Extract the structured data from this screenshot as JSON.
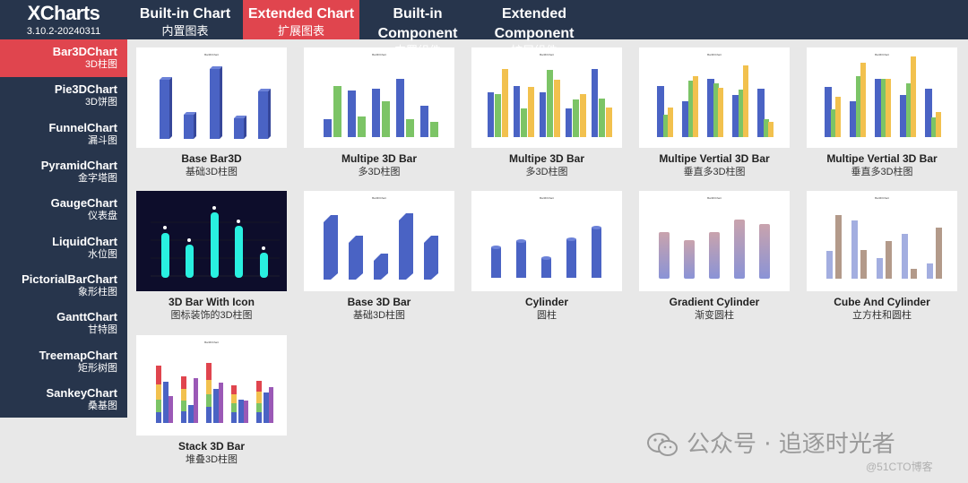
{
  "app": {
    "name": "XCharts",
    "version": "3.10.2-20240311"
  },
  "tabs": [
    {
      "en": "Built-in Chart",
      "zh": "内置图表"
    },
    {
      "en": "Extended Chart",
      "zh": "扩展图表"
    },
    {
      "en": "Built-in Component",
      "zh": "内置组件"
    },
    {
      "en": "Extended Component",
      "zh": "扩展组件"
    }
  ],
  "sidebar": [
    {
      "en": "Bar3DChart",
      "zh": "3D柱图"
    },
    {
      "en": "Pie3DChart",
      "zh": "3D饼图"
    },
    {
      "en": "FunnelChart",
      "zh": "漏斗图"
    },
    {
      "en": "PyramidChart",
      "zh": "金字塔图"
    },
    {
      "en": "GaugeChart",
      "zh": "仪表盘"
    },
    {
      "en": "LiquidChart",
      "zh": "水位图"
    },
    {
      "en": "PictorialBarChart",
      "zh": "象形柱图"
    },
    {
      "en": "GanttChart",
      "zh": "甘特图"
    },
    {
      "en": "TreemapChart",
      "zh": "矩形树图"
    },
    {
      "en": "SankeyChart",
      "zh": "桑基图"
    }
  ],
  "cards": [
    {
      "en": "Base Bar3D",
      "zh": "基础3D柱图"
    },
    {
      "en": "Multipe 3D Bar",
      "zh": "多3D柱图"
    },
    {
      "en": "Multipe 3D Bar",
      "zh": "多3D柱图"
    },
    {
      "en": "Multipe Vertial 3D Bar",
      "zh": "垂直多3D柱图"
    },
    {
      "en": "Multipe Vertial 3D Bar",
      "zh": "垂直多3D柱图"
    },
    {
      "en": "3D Bar With Icon",
      "zh": "图标装饰的3D柱图"
    },
    {
      "en": "Base 3D Bar",
      "zh": "基础3D柱图"
    },
    {
      "en": "Cylinder",
      "zh": "圆柱"
    },
    {
      "en": "Gradient Cylinder",
      "zh": "渐变圆柱"
    },
    {
      "en": "Cube And Cylinder",
      "zh": "立方柱和圆柱"
    },
    {
      "en": "Stack 3D Bar",
      "zh": "堆叠3D柱图"
    }
  ],
  "watermark": {
    "text": "公众号 · 追逐时光者",
    "site": "@51CTO博客"
  },
  "colors": {
    "nav": "#27354c",
    "accent": "#e0454e",
    "blue": "#4a63c4",
    "green": "#7cc466",
    "yellow": "#f2c14e",
    "cyan": "#29f0e0"
  }
}
